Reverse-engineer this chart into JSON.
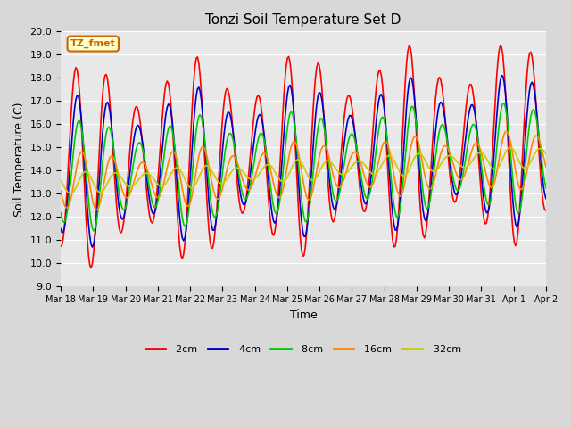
{
  "title": "Tonzi Soil Temperature Set D",
  "xlabel": "Time",
  "ylabel": "Soil Temperature (C)",
  "ylim": [
    9.0,
    20.0
  ],
  "yticks": [
    9.0,
    10.0,
    11.0,
    12.0,
    13.0,
    14.0,
    15.0,
    16.0,
    17.0,
    18.0,
    19.0,
    20.0
  ],
  "x_labels": [
    "Mar 18",
    "Mar 19",
    "Mar 20",
    "Mar 21",
    "Mar 22",
    "Mar 23",
    "Mar 24",
    "Mar 25",
    "Mar 26",
    "Mar 27",
    "Mar 28",
    "Mar 29",
    "Mar 30",
    "Mar 31",
    "Apr 1",
    "Apr 2"
  ],
  "legend_labels": [
    "-2cm",
    "-4cm",
    "-8cm",
    "-16cm",
    "-32cm"
  ],
  "series_colors": [
    "#ff0000",
    "#0000cc",
    "#00cc00",
    "#ff8800",
    "#cccc00"
  ],
  "annotation_text": "TZ_fmet",
  "annotation_color": "#cc6600",
  "annotation_bg": "#ffffcc",
  "fig_facecolor": "#d8d8d8",
  "ax_facecolor": "#e8e8e8",
  "grid_color": "#ffffff"
}
